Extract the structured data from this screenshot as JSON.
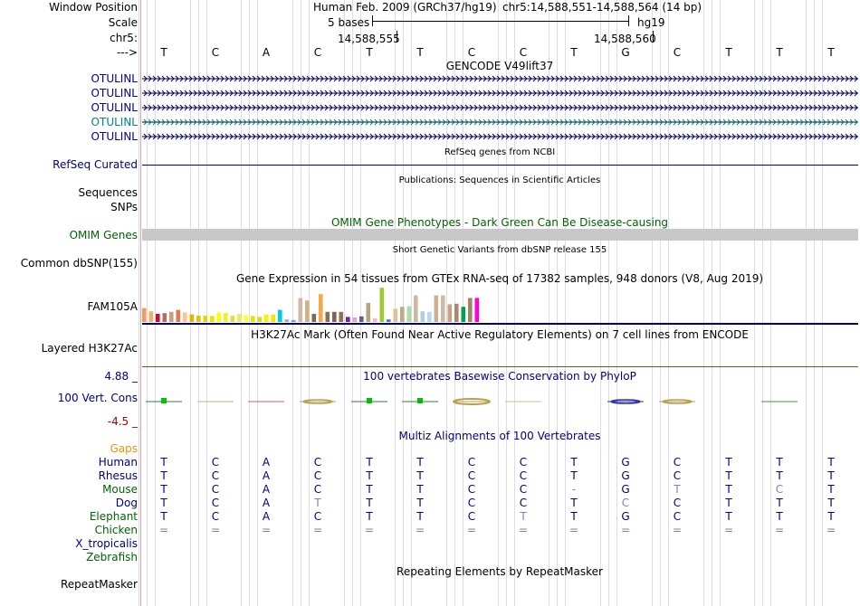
{
  "header": {
    "window_position_label": "Window Position",
    "scale_label": "Scale",
    "chrom_label": "chr5:",
    "strand_label": "--->",
    "assembly": "Human Feb. 2009 (GRCh37/hg19)",
    "position": "chr5:14,588,551-14,588,564 (14 bp)",
    "scale_text": "5 bases",
    "db": "hg19",
    "coord1": "14,588,555",
    "coord2": "14,588,560"
  },
  "sequence": [
    "T",
    "C",
    "A",
    "C",
    "T",
    "T",
    "C",
    "C",
    "T",
    "G",
    "C",
    "T",
    "T",
    "T"
  ],
  "tracks": {
    "gencode_title": "GENCODE V49lift37",
    "gencode_genes": [
      "OTULINL",
      "OTULINL",
      "OTULINL",
      "OTULINL",
      "OTULINL"
    ],
    "refseq_title": "RefSeq genes from NCBI",
    "refseq_label": "RefSeq Curated",
    "pubs_title": "Publications: Sequences in Scientific Articles",
    "sequences_label": "Sequences",
    "snps_label": "SNPs",
    "omim_title": "OMIM Gene Phenotypes - Dark Green Can Be Disease-causing",
    "omim_label": "OMIM Genes",
    "dbsnp_title": "Short Genetic Variants from dbSNP release 155",
    "dbsnp_label": "Common dbSNP(155)",
    "gtex_title": "Gene Expression in 54 tissues from GTEx RNA-seq of 17382 samples, 948 donors (V8, Aug 2019)",
    "gtex_label": "FAM105A",
    "h3k27_title": "H3K27Ac Mark (Often Found Near Active Regulatory Elements) on 7 cell lines from ENCODE",
    "h3k27_label": "Layered H3K27Ac",
    "phylop_max": "4.88 _",
    "phylop_title": "100 vertebrates Basewise Conservation by PhyloP",
    "phylop_label": "100 Vert. Cons",
    "phylop_min": "-4.5 _",
    "multiz_title": "Multiz Alignments of 100 Vertebrates",
    "gaps_label": "Gaps",
    "repeat_title": "Repeating Elements by RepeatMasker",
    "repeat_label": "RepeatMasker"
  },
  "gtex_bars": [
    {
      "h": 0.55,
      "c": "#f39c5f"
    },
    {
      "h": 0.42,
      "c": "#f0b060"
    },
    {
      "h": 0.32,
      "c": "#c8102e"
    },
    {
      "h": 0.35,
      "c": "#b07060"
    },
    {
      "h": 0.4,
      "c": "#c8a080"
    },
    {
      "h": 0.48,
      "c": "#e07a50"
    },
    {
      "h": 0.38,
      "c": "#f5c98a"
    },
    {
      "h": 0.3,
      "c": "#e8b000"
    },
    {
      "h": 0.25,
      "c": "#eec000"
    },
    {
      "h": 0.25,
      "c": "#f2d000"
    },
    {
      "h": 0.24,
      "c": "#f2e000"
    },
    {
      "h": 0.38,
      "c": "#ffff00"
    },
    {
      "h": 0.36,
      "c": "#f0f030"
    },
    {
      "h": 0.25,
      "c": "#e0e040"
    },
    {
      "h": 0.32,
      "c": "#eeee55"
    },
    {
      "h": 0.28,
      "c": "#ffff33"
    },
    {
      "h": 0.24,
      "c": "#e8e000"
    },
    {
      "h": 0.2,
      "c": "#dddd00"
    },
    {
      "h": 0.3,
      "c": "#ffee00"
    },
    {
      "h": 0.3,
      "c": "#f6e400"
    },
    {
      "h": 0.48,
      "c": "#00cdda"
    },
    {
      "h": 0.1,
      "c": "#a0a0ff"
    },
    {
      "h": 0.08,
      "c": "#9090e0"
    },
    {
      "h": 0.95,
      "c": "#d0b8a8"
    },
    {
      "h": 0.85,
      "c": "#d7b07e"
    },
    {
      "h": 0.32,
      "c": "#7f6a4e"
    },
    {
      "h": 1.1,
      "c": "#f7a84a"
    },
    {
      "h": 0.4,
      "c": "#8b6f55"
    },
    {
      "h": 0.4,
      "c": "#7e6451"
    },
    {
      "h": 0.4,
      "c": "#8d7156"
    },
    {
      "h": 0.2,
      "c": "#7a1fa0"
    },
    {
      "h": 0.18,
      "c": "#e7a0d0"
    },
    {
      "h": 0.22,
      "c": "#6a5a8e"
    },
    {
      "h": 0.75,
      "c": "#b8a080"
    },
    {
      "h": 0.15,
      "c": "#f7b8c0"
    },
    {
      "h": 1.35,
      "c": "#9acd32"
    },
    {
      "h": 0.1,
      "c": "#5a70d6"
    },
    {
      "h": 0.52,
      "c": "#e0c090"
    },
    {
      "h": 0.6,
      "c": "#c0a888"
    },
    {
      "h": 0.62,
      "c": "#a6e0a6"
    },
    {
      "h": 1.05,
      "c": "#cdb79e"
    },
    {
      "h": 0.42,
      "c": "#b4cde0"
    },
    {
      "h": 0.4,
      "c": "#b0d8ff"
    },
    {
      "h": 1.05,
      "c": "#cdb090"
    },
    {
      "h": 1.05,
      "c": "#d1b8a0"
    },
    {
      "h": 0.7,
      "c": "#c2a582"
    },
    {
      "h": 0.72,
      "c": "#a88b6f"
    },
    {
      "h": 0.6,
      "c": "#00a050"
    },
    {
      "h": 0.95,
      "c": "#9e8567"
    },
    {
      "h": 0.95,
      "c": "#ff00d8"
    }
  ],
  "species": [
    {
      "name": "Human",
      "color": "#000080",
      "bases": [
        "T",
        "C",
        "A",
        "C",
        "T",
        "T",
        "C",
        "C",
        "T",
        "G",
        "C",
        "T",
        "T",
        "T"
      ]
    },
    {
      "name": "Rhesus",
      "color": "#000080",
      "bases": [
        "T",
        "C",
        "A",
        "C",
        "T",
        "T",
        "C",
        "C",
        "T",
        "G",
        "C",
        "T",
        "T",
        "T"
      ]
    },
    {
      "name": "Mouse",
      "color": "#006400",
      "bases": [
        "T",
        "C",
        "A",
        "C",
        "T",
        "T",
        "C",
        "C",
        "-",
        "G",
        "T",
        "T",
        "C",
        "T"
      ]
    },
    {
      "name": "Dog",
      "color": "#000080",
      "bases": [
        "T",
        "C",
        "A",
        "T",
        "T",
        "T",
        "C",
        "C",
        "T",
        "C",
        "C",
        "T",
        "T",
        "T"
      ]
    },
    {
      "name": "Elephant",
      "color": "#006400",
      "bases": [
        "T",
        "C",
        "A",
        "C",
        "T",
        "T",
        "C",
        "T",
        "T",
        "G",
        "C",
        "T",
        "T",
        "T"
      ]
    },
    {
      "name": "Chicken",
      "color": "#006400",
      "bases": [
        "=",
        "=",
        "=",
        "=",
        "=",
        "=",
        "=",
        "=",
        "=",
        "=",
        "=",
        "=",
        "=",
        "="
      ]
    },
    {
      "name": "X_tropicalis",
      "color": "#000080",
      "bases": []
    },
    {
      "name": "Zebrafish",
      "color": "#006400",
      "bases": []
    }
  ],
  "colors": {
    "label_blue": "#000080",
    "label_green": "#006400",
    "gencode_teal": "#00808b",
    "omim_gray": "#c8c8c8",
    "gaps_orange": "#e69500",
    "phylop_red": "#a00000"
  }
}
